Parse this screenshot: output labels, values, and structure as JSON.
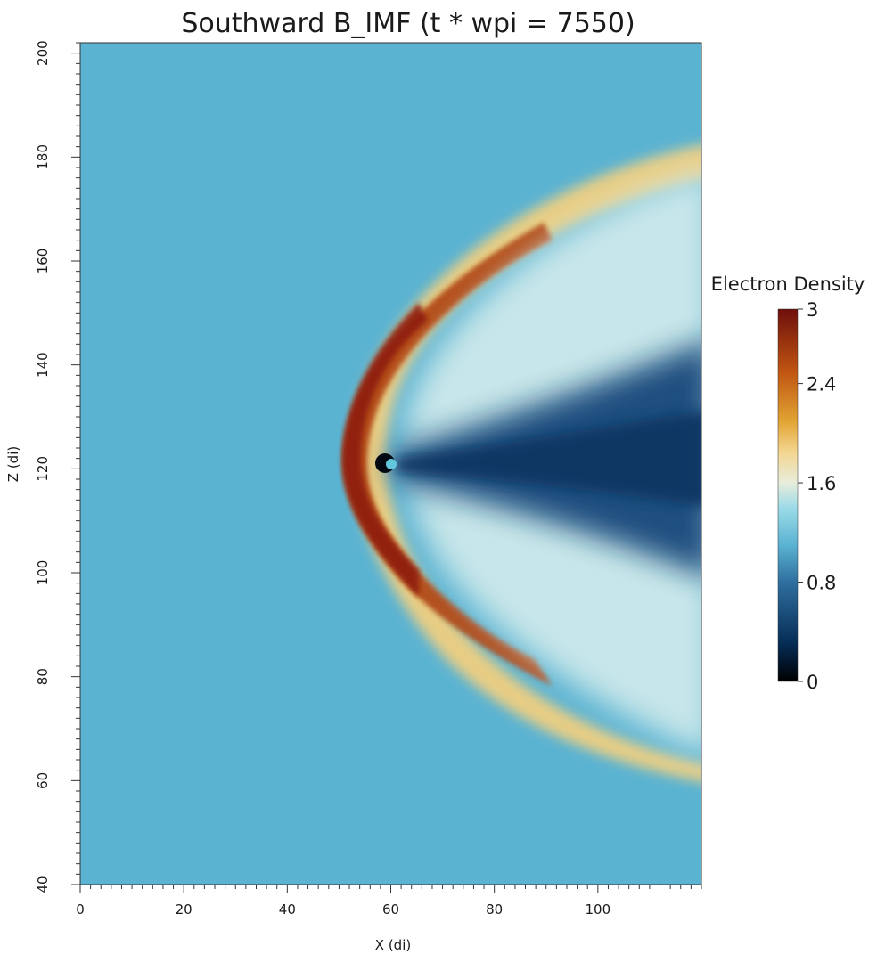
{
  "chart_data": {
    "type": "heatmap",
    "title": "Southward B_IMF (t * wpi = 7550)",
    "xlabel": "X (di)",
    "ylabel": "Z (di)",
    "xlim": [
      0,
      120
    ],
    "ylim": [
      40,
      202
    ],
    "x_ticks": [
      0,
      20,
      40,
      60,
      80,
      100
    ],
    "y_ticks": [
      40,
      60,
      80,
      100,
      120,
      140,
      160,
      180,
      200
    ],
    "x_minor_step": 2,
    "y_minor_step": 2,
    "colorbar": {
      "title": "Electron Density",
      "range": [
        0,
        3
      ],
      "ticks": [
        0,
        0.8,
        1.6,
        2.4,
        3
      ],
      "tick_labels": [
        "0",
        "0.8",
        "1.6",
        "2.4",
        "3"
      ],
      "placement": "right",
      "colormap": [
        {
          "value": 0,
          "color": "#000000"
        },
        {
          "value": 0.3,
          "color": "#062c55"
        },
        {
          "value": 0.8,
          "color": "#2f6f9f"
        },
        {
          "value": 1.1,
          "color": "#5bb3d2"
        },
        {
          "value": 1.4,
          "color": "#9cdbe8"
        },
        {
          "value": 1.6,
          "color": "#e8eddb"
        },
        {
          "value": 1.85,
          "color": "#f3d590"
        },
        {
          "value": 2.1,
          "color": "#e1a332"
        },
        {
          "value": 2.5,
          "color": "#bf5412"
        },
        {
          "value": 3,
          "color": "#6e0e0c"
        }
      ]
    },
    "features": {
      "solar_wind_density": 1.0,
      "obstacle_center": [
        60,
        121
      ],
      "bow_shock_nose_x": 51,
      "peak_sheath_density": 2.9,
      "tail_min_density": 0.3
    }
  }
}
